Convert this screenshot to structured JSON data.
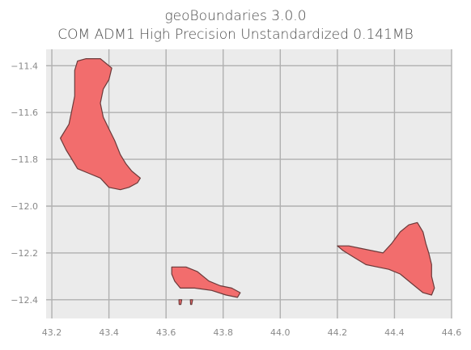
{
  "title": {
    "line1": "geoBoundaries 3.0.0",
    "line2": "COM ADM1 High Precision Unstandardized 0.141MB"
  },
  "colors": {
    "plot_bg": "#ebebeb",
    "grid": "#b0b0b0",
    "fill": "#f26d6d",
    "edge": "#6b3a3a"
  },
  "chart_data": {
    "type": "map",
    "xlim": [
      43.18,
      44.6
    ],
    "ylim": [
      -12.48,
      -11.33
    ],
    "xticks": [
      "43.2",
      "43.4",
      "43.6",
      "43.8",
      "44.0",
      "44.2",
      "44.4",
      "44.6"
    ],
    "yticks": [
      "-11.4",
      "-11.6",
      "-11.8",
      "-12.0",
      "-12.2",
      "-12.4"
    ],
    "xtick_values": [
      43.2,
      43.4,
      43.6,
      43.8,
      44.0,
      44.2,
      44.4,
      44.6
    ],
    "ytick_values": [
      -11.4,
      -11.6,
      -11.8,
      -12.0,
      -12.2,
      -12.4
    ],
    "regions": [
      {
        "id": "grande-comore",
        "coords": [
          [
            43.29,
            -11.38
          ],
          [
            43.32,
            -11.37
          ],
          [
            43.37,
            -11.37
          ],
          [
            43.41,
            -11.41
          ],
          [
            43.4,
            -11.46
          ],
          [
            43.38,
            -11.5
          ],
          [
            43.37,
            -11.56
          ],
          [
            43.38,
            -11.62
          ],
          [
            43.4,
            -11.67
          ],
          [
            43.42,
            -11.72
          ],
          [
            43.44,
            -11.78
          ],
          [
            43.46,
            -11.82
          ],
          [
            43.48,
            -11.85
          ],
          [
            43.51,
            -11.88
          ],
          [
            43.5,
            -11.9
          ],
          [
            43.47,
            -11.92
          ],
          [
            43.44,
            -11.93
          ],
          [
            43.4,
            -11.92
          ],
          [
            43.37,
            -11.88
          ],
          [
            43.33,
            -11.86
          ],
          [
            43.29,
            -11.84
          ],
          [
            43.27,
            -11.8
          ],
          [
            43.25,
            -11.76
          ],
          [
            43.23,
            -11.71
          ],
          [
            43.26,
            -11.65
          ],
          [
            43.27,
            -11.59
          ],
          [
            43.28,
            -11.53
          ],
          [
            43.28,
            -11.47
          ],
          [
            43.28,
            -11.42
          ]
        ]
      },
      {
        "id": "moheli",
        "coords": [
          [
            43.62,
            -12.26
          ],
          [
            43.67,
            -12.26
          ],
          [
            43.71,
            -12.28
          ],
          [
            43.75,
            -12.32
          ],
          [
            43.79,
            -12.34
          ],
          [
            43.83,
            -12.35
          ],
          [
            43.86,
            -12.37
          ],
          [
            43.85,
            -12.39
          ],
          [
            43.81,
            -12.38
          ],
          [
            43.76,
            -12.36
          ],
          [
            43.7,
            -12.35
          ],
          [
            43.65,
            -12.35
          ],
          [
            43.63,
            -12.32
          ],
          [
            43.62,
            -12.29
          ]
        ]
      },
      {
        "id": "moheli-islet-1",
        "coords": [
          [
            43.645,
            -12.4
          ],
          [
            43.655,
            -12.4
          ],
          [
            43.652,
            -12.42
          ],
          [
            43.646,
            -12.42
          ]
        ]
      },
      {
        "id": "moheli-islet-2",
        "coords": [
          [
            43.685,
            -12.4
          ],
          [
            43.693,
            -12.4
          ],
          [
            43.69,
            -12.42
          ],
          [
            43.686,
            -12.42
          ]
        ]
      },
      {
        "id": "anjouan",
        "coords": [
          [
            44.2,
            -12.17
          ],
          [
            44.24,
            -12.17
          ],
          [
            44.28,
            -12.18
          ],
          [
            44.32,
            -12.19
          ],
          [
            44.36,
            -12.2
          ],
          [
            44.39,
            -12.16
          ],
          [
            44.42,
            -12.11
          ],
          [
            44.45,
            -12.08
          ],
          [
            44.48,
            -12.07
          ],
          [
            44.5,
            -12.11
          ],
          [
            44.51,
            -12.16
          ],
          [
            44.52,
            -12.2
          ],
          [
            44.53,
            -12.25
          ],
          [
            44.53,
            -12.3
          ],
          [
            44.54,
            -12.35
          ],
          [
            44.53,
            -12.38
          ],
          [
            44.5,
            -12.37
          ],
          [
            44.46,
            -12.33
          ],
          [
            44.42,
            -12.29
          ],
          [
            44.38,
            -12.27
          ],
          [
            44.34,
            -12.26
          ],
          [
            44.3,
            -12.25
          ],
          [
            44.26,
            -12.22
          ],
          [
            44.22,
            -12.19
          ]
        ]
      }
    ]
  }
}
